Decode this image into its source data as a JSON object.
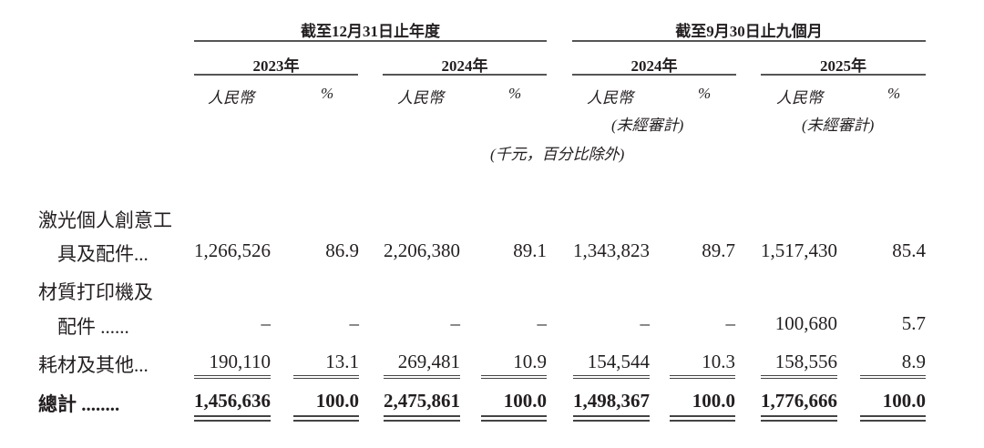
{
  "header": {
    "group1": "截至12月31日止年度",
    "group2": "截至9月30日止九個月",
    "years": [
      "2023年",
      "2024年",
      "2024年",
      "2025年"
    ],
    "currency": "人民幣",
    "percent": "%",
    "unaudited": "(未經審計)",
    "unit_note": "(千元，百分比除外)"
  },
  "rows": [
    {
      "label_line1": "激光個人創意工",
      "label_line2": "具及配件...",
      "values": [
        "1,266,526",
        "86.9",
        "2,206,380",
        "89.1",
        "1,343,823",
        "89.7",
        "1,517,430",
        "85.4"
      ]
    },
    {
      "label_line1": "材質打印機及",
      "label_line2": "配件 ......",
      "values": [
        "–",
        "–",
        "–",
        "–",
        "–",
        "–",
        "100,680",
        "5.7"
      ]
    },
    {
      "label_line1": "耗材及其他...",
      "values": [
        "190,110",
        "13.1",
        "269,481",
        "10.9",
        "154,544",
        "10.3",
        "158,556",
        "8.9"
      ]
    },
    {
      "label_line1": "總計 ........",
      "values": [
        "1,456,636",
        "100.0",
        "2,475,861",
        "100.0",
        "1,498,367",
        "100.0",
        "1,776,666",
        "100.0"
      ]
    }
  ]
}
